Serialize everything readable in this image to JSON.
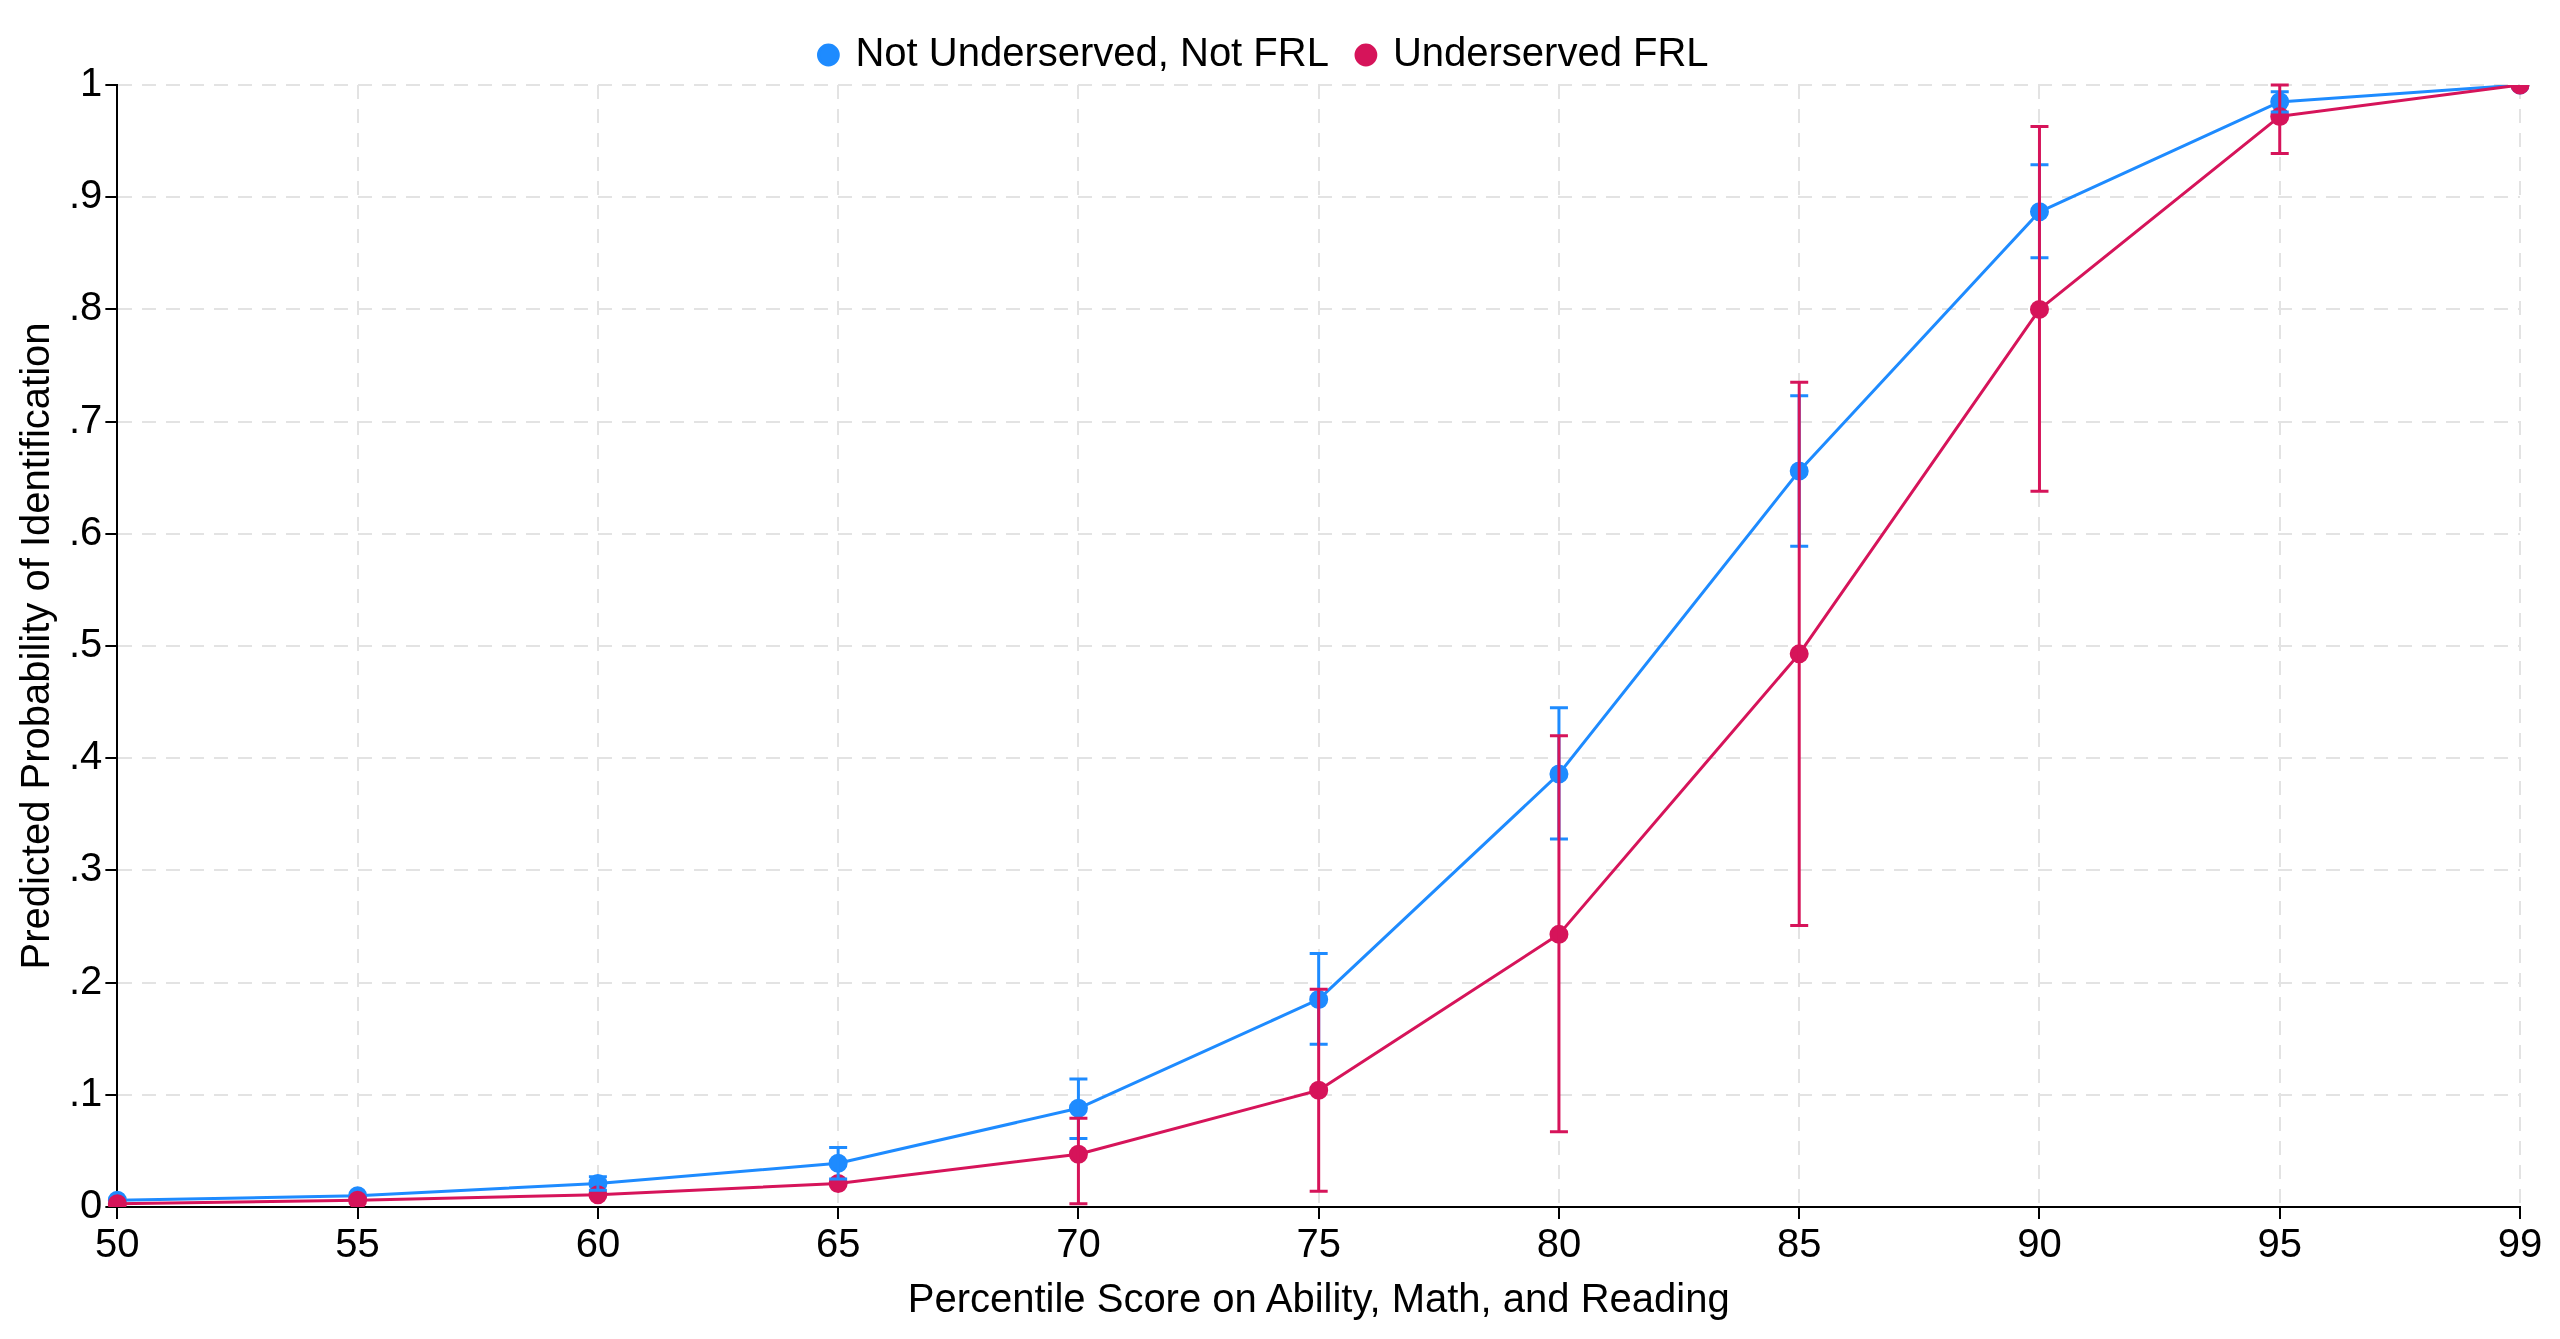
{
  "chart_data": {
    "type": "line",
    "xlabel": "Percentile Score on Ability, Math, and Reading",
    "ylabel": "Predicted Probability of Identification",
    "categories": [
      "50",
      "55",
      "60",
      "65",
      "70",
      "75",
      "80",
      "85",
      "90",
      "95",
      "99"
    ],
    "series": [
      {
        "name": "Not Underserved, Not FRL",
        "color": "#1e8bff",
        "values": [
          0.006,
          0.01,
          0.021,
          0.039,
          0.088,
          0.185,
          0.386,
          0.656,
          0.887,
          0.985,
          1.0
        ],
        "errors": [
          null,
          null,
          [
            0.015,
            0.027
          ],
          [
            0.025,
            0.053
          ],
          [
            0.061,
            0.114
          ],
          [
            0.145,
            0.226
          ],
          [
            0.328,
            0.445
          ],
          [
            0.589,
            0.723
          ],
          [
            0.846,
            0.929
          ],
          [
            0.976,
            0.994
          ],
          null
        ]
      },
      {
        "name": "Underserved FRL",
        "color": "#d6145a",
        "values": [
          0.003,
          0.006,
          0.011,
          0.021,
          0.047,
          0.104,
          0.243,
          0.493,
          0.8,
          0.972,
          1.0
        ],
        "errors": [
          null,
          null,
          null,
          null,
          [
            0.003,
            0.079
          ],
          [
            0.014,
            0.194
          ],
          [
            0.067,
            0.42
          ],
          [
            0.251,
            0.735
          ],
          [
            0.638,
            0.963
          ],
          [
            0.939,
            1.0
          ],
          null
        ]
      }
    ],
    "ylim": [
      0,
      1
    ],
    "yticks": [
      0,
      {
        "value": 0.1,
        "label": ".1"
      },
      {
        "value": 0.2,
        "label": ".2"
      },
      {
        "value": 0.3,
        "label": ".3"
      },
      {
        "value": 0.4,
        "label": ".4"
      },
      {
        "value": 0.5,
        "label": ".5"
      },
      {
        "value": 0.6,
        "label": ".6"
      },
      {
        "value": 0.7,
        "label": ".7"
      },
      {
        "value": 0.8,
        "label": ".8"
      },
      {
        "value": 0.9,
        "label": ".9"
      },
      1
    ],
    "grid": true,
    "legend": "top",
    "marker": "circle",
    "line_style": "solid"
  }
}
